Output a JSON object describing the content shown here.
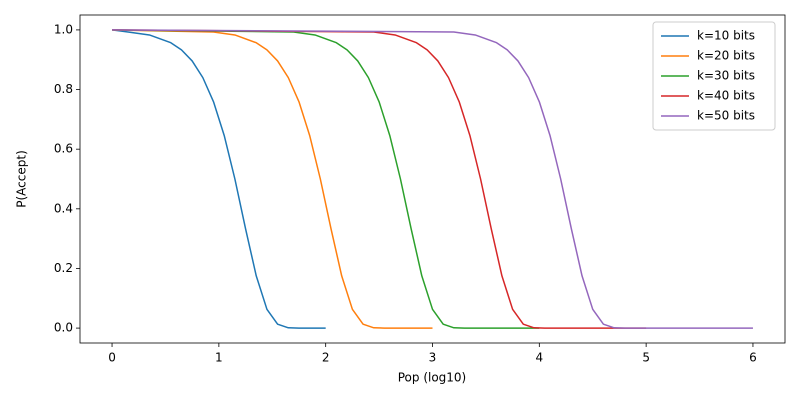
{
  "chart_data": {
    "type": "line",
    "xlabel": "Pop (log10)",
    "ylabel": "P(Accept)",
    "xlim": [
      -0.3,
      6.3
    ],
    "ylim": [
      -0.05,
      1.05
    ],
    "xticks": [
      0,
      1,
      2,
      3,
      4,
      5,
      6
    ],
    "yticks": [
      {
        "value": 0,
        "label": "0.0"
      },
      {
        "value": 0.2,
        "label": "0.2"
      },
      {
        "value": 0.4,
        "label": "0.4"
      },
      {
        "value": 0.6,
        "label": "0.6"
      },
      {
        "value": 0.8,
        "label": "0.8"
      },
      {
        "value": 1,
        "label": "1.0"
      }
    ],
    "legend": "upper right",
    "series": [
      {
        "name": "k=10 bits",
        "color": "#1f77b4",
        "x": [
          0,
          0.15,
          0.35,
          0.55,
          0.65,
          0.75,
          0.85,
          0.95,
          1.05,
          1.15,
          1.25,
          1.35,
          1.45,
          1.55,
          1.65,
          1.75,
          2.0
        ],
        "values": [
          1,
          0.993,
          0.983,
          0.957,
          0.933,
          0.896,
          0.84,
          0.759,
          0.646,
          0.5,
          0.333,
          0.175,
          0.063,
          0.013,
          0.001,
          0,
          0
        ]
      },
      {
        "name": "k=20 bits",
        "color": "#ff7f0e",
        "x": [
          0,
          0.95,
          1.15,
          1.35,
          1.45,
          1.55,
          1.65,
          1.75,
          1.85,
          1.95,
          2.05,
          2.15,
          2.25,
          2.35,
          2.45,
          2.55,
          3.0
        ],
        "values": [
          1,
          0.993,
          0.983,
          0.957,
          0.933,
          0.896,
          0.84,
          0.759,
          0.646,
          0.5,
          0.333,
          0.175,
          0.063,
          0.013,
          0.001,
          0,
          0
        ]
      },
      {
        "name": "k=30 bits",
        "color": "#2ca02c",
        "x": [
          0,
          1.7,
          1.9,
          2.1,
          2.2,
          2.3,
          2.4,
          2.5,
          2.6,
          2.7,
          2.8,
          2.9,
          3.0,
          3.1,
          3.2,
          3.3,
          4.0
        ],
        "values": [
          1,
          0.993,
          0.983,
          0.957,
          0.933,
          0.896,
          0.84,
          0.759,
          0.646,
          0.5,
          0.333,
          0.175,
          0.063,
          0.013,
          0.001,
          0,
          0
        ]
      },
      {
        "name": "k=40 bits",
        "color": "#d62728",
        "x": [
          0,
          2.45,
          2.65,
          2.85,
          2.95,
          3.05,
          3.15,
          3.25,
          3.35,
          3.45,
          3.55,
          3.65,
          3.75,
          3.85,
          3.95,
          4.05,
          5.0
        ],
        "values": [
          1,
          0.993,
          0.983,
          0.957,
          0.933,
          0.896,
          0.84,
          0.759,
          0.646,
          0.5,
          0.333,
          0.175,
          0.063,
          0.013,
          0.001,
          0,
          0
        ]
      },
      {
        "name": "k=50 bits",
        "color": "#9467bd",
        "x": [
          0,
          3.2,
          3.4,
          3.6,
          3.7,
          3.8,
          3.9,
          4.0,
          4.1,
          4.2,
          4.3,
          4.4,
          4.5,
          4.6,
          4.7,
          4.8,
          6.0
        ],
        "values": [
          1,
          0.993,
          0.983,
          0.957,
          0.933,
          0.896,
          0.84,
          0.759,
          0.646,
          0.5,
          0.333,
          0.175,
          0.063,
          0.013,
          0.001,
          0,
          0
        ]
      }
    ]
  }
}
